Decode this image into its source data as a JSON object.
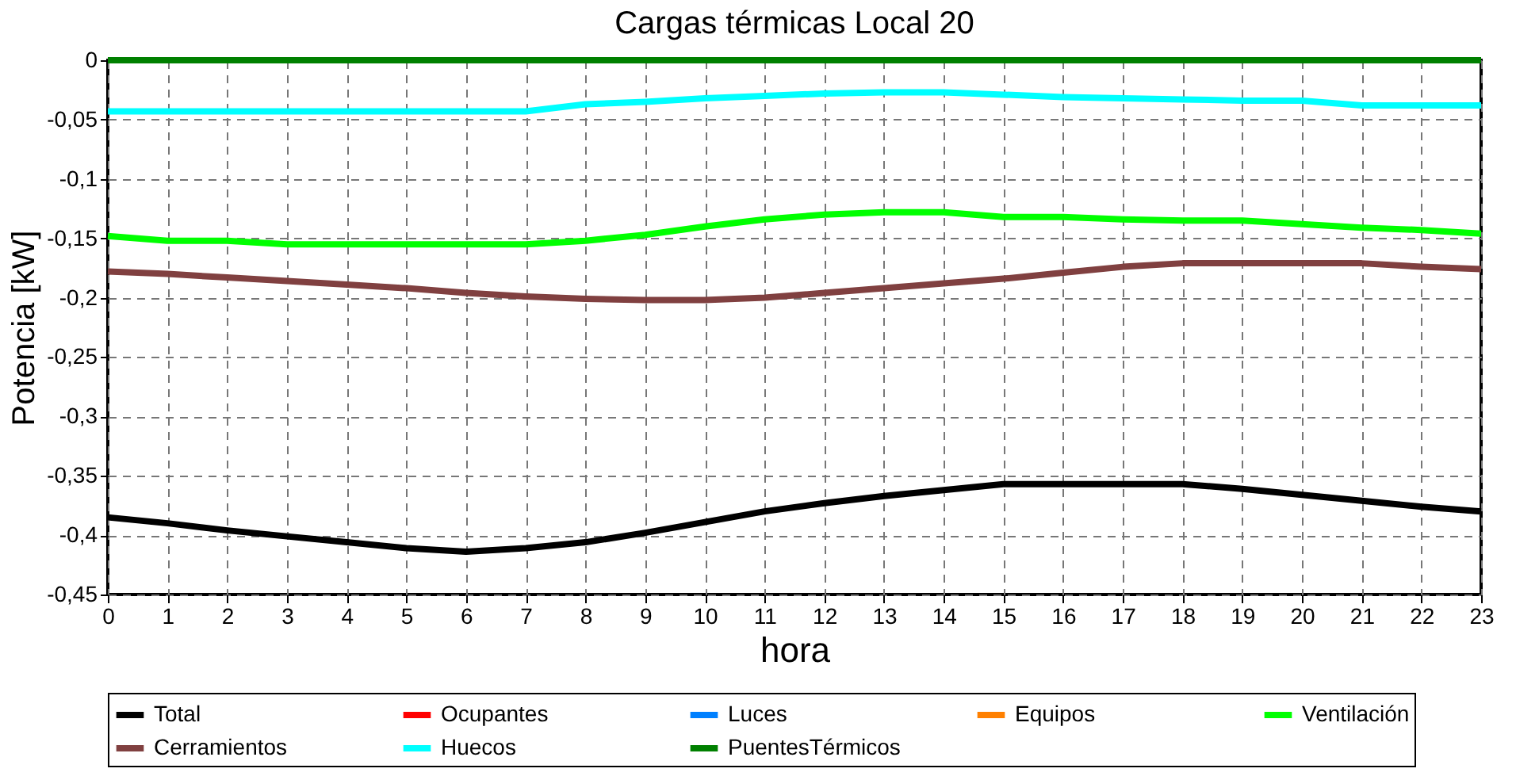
{
  "chart_data": {
    "type": "line",
    "title": "Cargas térmicas Local 20",
    "xlabel": "hora",
    "ylabel": "Potencia [kW]",
    "x": [
      0,
      1,
      2,
      3,
      4,
      5,
      6,
      7,
      8,
      9,
      10,
      11,
      12,
      13,
      14,
      15,
      16,
      17,
      18,
      19,
      20,
      21,
      22,
      23
    ],
    "xlim": [
      0,
      23
    ],
    "xticks": [
      0,
      1,
      2,
      3,
      4,
      5,
      6,
      7,
      8,
      9,
      10,
      11,
      12,
      13,
      14,
      15,
      16,
      17,
      18,
      19,
      20,
      21,
      22,
      23
    ],
    "ylim": [
      -0.45,
      0
    ],
    "yticks": [
      {
        "value": -0.45,
        "label": "-0,45"
      },
      {
        "value": -0.4,
        "label": "-0,4"
      },
      {
        "value": -0.35,
        "label": "-0,35"
      },
      {
        "value": -0.3,
        "label": "-0,3"
      },
      {
        "value": -0.25,
        "label": "-0,25"
      },
      {
        "value": -0.2,
        "label": "-0,2"
      },
      {
        "value": -0.15,
        "label": "-0,15"
      },
      {
        "value": -0.1,
        "label": "-0,1"
      },
      {
        "value": -0.05,
        "label": "-0,05"
      },
      0
    ],
    "grid": true,
    "legend": "bottom",
    "line_style": "solid",
    "series": [
      {
        "name": "Total",
        "color": "#000000",
        "values": [
          -0.385,
          -0.39,
          -0.396,
          -0.401,
          -0.406,
          -0.411,
          -0.414,
          -0.411,
          -0.406,
          -0.398,
          -0.389,
          -0.38,
          -0.373,
          -0.367,
          -0.362,
          -0.357,
          -0.357,
          -0.357,
          -0.357,
          -0.361,
          -0.366,
          -0.371,
          -0.376,
          -0.38
        ]
      },
      {
        "name": "Ocupantes",
        "color": "#ff0000",
        "values": [
          null,
          null,
          null,
          null,
          null,
          null,
          null,
          null,
          null,
          null,
          null,
          null,
          null,
          null,
          null,
          null,
          null,
          null,
          null,
          null,
          null,
          null,
          null,
          null
        ]
      },
      {
        "name": "Luces",
        "color": "#0080ff",
        "values": [
          null,
          null,
          null,
          null,
          null,
          null,
          null,
          null,
          null,
          null,
          null,
          null,
          null,
          null,
          null,
          null,
          null,
          null,
          null,
          null,
          null,
          null,
          null,
          null
        ]
      },
      {
        "name": "Equipos",
        "color": "#ff8000",
        "values": [
          null,
          null,
          null,
          null,
          null,
          null,
          null,
          null,
          null,
          null,
          null,
          null,
          null,
          null,
          null,
          null,
          null,
          null,
          null,
          null,
          null,
          null,
          null,
          null
        ]
      },
      {
        "name": "Ventilación",
        "color": "#00ff00",
        "values": [
          -0.148,
          -0.152,
          -0.152,
          -0.155,
          -0.155,
          -0.155,
          -0.155,
          -0.155,
          -0.152,
          -0.147,
          -0.14,
          -0.134,
          -0.13,
          -0.128,
          -0.128,
          -0.132,
          -0.132,
          -0.134,
          -0.135,
          -0.135,
          -0.138,
          -0.141,
          -0.143,
          -0.146
        ]
      },
      {
        "name": "Cerramientos",
        "color": "#804040",
        "values": [
          -0.178,
          -0.18,
          -0.183,
          -0.186,
          -0.189,
          -0.192,
          -0.196,
          -0.199,
          -0.201,
          -0.202,
          -0.202,
          -0.2,
          -0.196,
          -0.192,
          -0.188,
          -0.184,
          -0.179,
          -0.174,
          -0.171,
          -0.171,
          -0.171,
          -0.171,
          -0.174,
          -0.176
        ]
      },
      {
        "name": "Huecos",
        "color": "#00ffff",
        "values": [
          -0.043,
          -0.043,
          -0.043,
          -0.043,
          -0.043,
          -0.043,
          -0.043,
          -0.043,
          -0.037,
          -0.035,
          -0.032,
          -0.03,
          -0.028,
          -0.027,
          -0.027,
          -0.029,
          -0.031,
          -0.032,
          -0.033,
          -0.034,
          -0.034,
          -0.038,
          -0.038,
          -0.038
        ]
      },
      {
        "name": "PuentesTérmicos",
        "color": "#008000",
        "values": [
          0,
          0,
          0,
          0,
          0,
          0,
          0,
          0,
          0,
          0,
          0,
          0,
          0,
          0,
          0,
          0,
          0,
          0,
          0,
          0,
          0,
          0,
          0,
          0
        ]
      }
    ]
  }
}
